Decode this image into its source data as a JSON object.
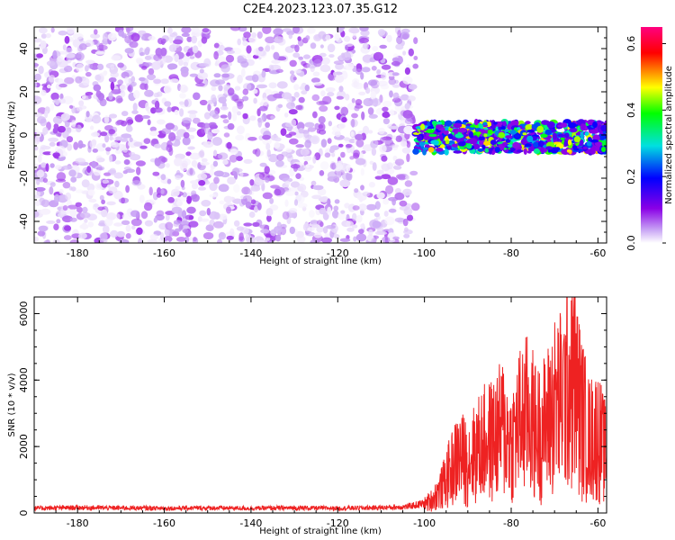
{
  "title": "C2E4.2023.123.07.35.G12",
  "chart_data": [
    {
      "type": "heatmap",
      "xlabel": "Height of straight line (km)",
      "ylabel": "Frequency (Hz)",
      "xlim": [
        -190,
        -58
      ],
      "ylim": [
        -50,
        50
      ],
      "xticks": [
        "-180",
        "-160",
        "-140",
        "-120",
        "-100",
        "-80",
        "-60"
      ],
      "yticks": [
        "40",
        "20",
        "0",
        "-20",
        "-40"
      ],
      "colorbar": {
        "label": "Normalized spectral amplitude",
        "range": [
          0,
          0.65
        ],
        "ticks": [
          "0.0",
          "0.2",
          "0.4",
          "0.6"
        ],
        "colormap": [
          "#ffffff",
          "#c9a6f5",
          "#8a00e6",
          "#0000ff",
          "#00e0e0",
          "#00ff00",
          "#ffff00",
          "#ff0000",
          "#ff0080"
        ]
      },
      "regions": [
        {
          "x": [
            -190,
            -102
          ],
          "freq": [
            -50,
            50
          ],
          "amplitude": [
            0.0,
            0.08
          ],
          "description": "noise"
        },
        {
          "x": [
            -102,
            -58
          ],
          "freq": [
            -8,
            6
          ],
          "amplitude": [
            0.1,
            0.5
          ],
          "description": "signal band centered near 0 Hz"
        }
      ]
    },
    {
      "type": "line",
      "xlabel": "Height of straight line (km)",
      "ylabel": "SNR (10 * v/v)",
      "xlim": [
        -190,
        -58
      ],
      "ylim": [
        0,
        6500
      ],
      "xticks": [
        "-180",
        "-160",
        "-140",
        "-120",
        "-100",
        "-80",
        "-60"
      ],
      "yticks": [
        "0",
        "2000",
        "4000",
        "6000"
      ],
      "series": [
        {
          "color": "#ee2222",
          "x": [
            -190,
            -180,
            -170,
            -160,
            -150,
            -140,
            -130,
            -120,
            -110,
            -104,
            -100,
            -98,
            -96,
            -94,
            -92,
            -90,
            -88,
            -86,
            -84,
            -82,
            -80,
            -78,
            -76,
            -74,
            -72,
            -70,
            -68,
            -66,
            -64,
            -62,
            -60,
            -58
          ],
          "y": [
            150,
            170,
            160,
            150,
            160,
            150,
            160,
            150,
            170,
            200,
            300,
            500,
            900,
            1500,
            2000,
            1800,
            2200,
            2500,
            2600,
            3000,
            2400,
            3200,
            3500,
            2800,
            3100,
            3800,
            4000,
            5000,
            3600,
            2600,
            2800,
            2000
          ]
        }
      ]
    }
  ]
}
